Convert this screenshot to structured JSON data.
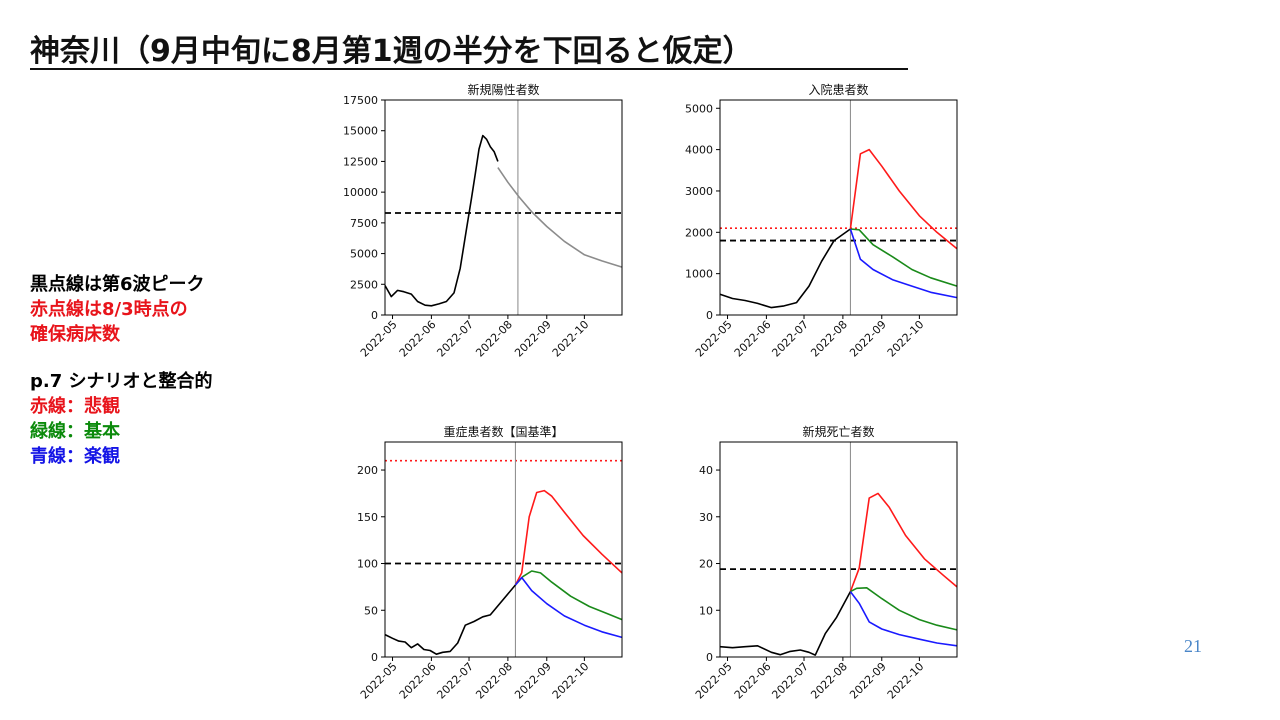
{
  "title": "神奈川（9月中旬に8月第1週の半分を下回ると仮定）",
  "notes": {
    "black_dotted": "黒点線は第6波ピーク",
    "red_dotted_1": "赤点線は8/3時点の",
    "red_dotted_2": "確保病床数",
    "scenario": "p.7 シナリオと整合的",
    "red_line": "赤線：悲観",
    "green_line": "緑線：基本",
    "blue_line": "青線：楽観"
  },
  "colors": {
    "pessimistic": "#ff1a1a",
    "baseline": "#1a8a1a",
    "optimistic": "#1a1aff",
    "actual": "#000000",
    "projection_single": "#8c8c8c",
    "note_black": "#000000",
    "note_red": "#e8141b",
    "note_green": "#0b8a0b",
    "note_blue": "#1414e6",
    "page_number": "#4a86c8"
  },
  "page_number": "21",
  "chart_data": [
    {
      "type": "line",
      "title": "新規陽性者数",
      "x_range": [
        "2022-04-25",
        "2022-10-31"
      ],
      "x_ticks": [
        "2022-05",
        "2022-06",
        "2022-07",
        "2022-08",
        "2022-09",
        "2022-10"
      ],
      "ylim": [
        0,
        17500
      ],
      "y_ticks": [
        0,
        2500,
        5000,
        7500,
        10000,
        12500,
        15000,
        17500
      ],
      "vline_date": "2022-08-09",
      "hlines": [
        {
          "value": 8300,
          "style": "black-dashed",
          "meaning": "第6波ピーク"
        }
      ],
      "series": [
        {
          "role": "actual",
          "points": [
            [
              "2022-04-25",
              2400
            ],
            [
              "2022-04-30",
              1500
            ],
            [
              "2022-05-05",
              2000
            ],
            [
              "2022-05-10",
              1900
            ],
            [
              "2022-05-16",
              1700
            ],
            [
              "2022-05-21",
              1100
            ],
            [
              "2022-05-27",
              800
            ],
            [
              "2022-06-01",
              750
            ],
            [
              "2022-06-07",
              900
            ],
            [
              "2022-06-13",
              1100
            ],
            [
              "2022-06-19",
              1800
            ],
            [
              "2022-06-24",
              3800
            ],
            [
              "2022-06-29",
              7000
            ],
            [
              "2022-07-03",
              9500
            ],
            [
              "2022-07-06",
              11500
            ],
            [
              "2022-07-09",
              13500
            ],
            [
              "2022-07-12",
              14600
            ],
            [
              "2022-07-15",
              14300
            ],
            [
              "2022-07-18",
              13700
            ],
            [
              "2022-07-21",
              13300
            ],
            [
              "2022-07-24",
              12500
            ]
          ]
        },
        {
          "role": "projection",
          "points": [
            [
              "2022-07-24",
              12000
            ],
            [
              "2022-08-01",
              10800
            ],
            [
              "2022-08-10",
              9600
            ],
            [
              "2022-08-20",
              8400
            ],
            [
              "2022-09-01",
              7200
            ],
            [
              "2022-09-15",
              6000
            ],
            [
              "2022-10-01",
              4900
            ],
            [
              "2022-10-15",
              4400
            ],
            [
              "2022-10-31",
              3900
            ]
          ]
        }
      ]
    },
    {
      "type": "line",
      "title": "入院患者数",
      "x_range": [
        "2022-04-25",
        "2022-10-31"
      ],
      "x_ticks": [
        "2022-05",
        "2022-06",
        "2022-07",
        "2022-08",
        "2022-09",
        "2022-10"
      ],
      "ylim": [
        0,
        5200
      ],
      "y_ticks": [
        0,
        1000,
        2000,
        3000,
        4000,
        5000
      ],
      "vline_date": "2022-08-07",
      "hlines": [
        {
          "value": 1800,
          "style": "black-dashed",
          "meaning": "第6波ピーク"
        },
        {
          "value": 2100,
          "style": "red-dotted",
          "meaning": "確保病床数"
        }
      ],
      "series": [
        {
          "role": "actual",
          "points": [
            [
              "2022-04-25",
              500
            ],
            [
              "2022-05-05",
              400
            ],
            [
              "2022-05-15",
              350
            ],
            [
              "2022-05-25",
              280
            ],
            [
              "2022-06-05",
              180
            ],
            [
              "2022-06-15",
              220
            ],
            [
              "2022-06-25",
              300
            ],
            [
              "2022-07-05",
              700
            ],
            [
              "2022-07-15",
              1300
            ],
            [
              "2022-07-25",
              1800
            ],
            [
              "2022-08-07",
              2080
            ]
          ]
        },
        {
          "role": "pessimistic",
          "points": [
            [
              "2022-08-07",
              2080
            ],
            [
              "2022-08-15",
              3900
            ],
            [
              "2022-08-22",
              4000
            ],
            [
              "2022-09-01",
              3600
            ],
            [
              "2022-09-15",
              3000
            ],
            [
              "2022-10-01",
              2400
            ],
            [
              "2022-10-15",
              2000
            ],
            [
              "2022-10-31",
              1600
            ]
          ]
        },
        {
          "role": "baseline",
          "points": [
            [
              "2022-08-07",
              2080
            ],
            [
              "2022-08-14",
              2060
            ],
            [
              "2022-08-25",
              1700
            ],
            [
              "2022-09-10",
              1400
            ],
            [
              "2022-09-25",
              1100
            ],
            [
              "2022-10-10",
              900
            ],
            [
              "2022-10-31",
              700
            ]
          ]
        },
        {
          "role": "optimistic",
          "points": [
            [
              "2022-08-07",
              2080
            ],
            [
              "2022-08-15",
              1350
            ],
            [
              "2022-08-25",
              1100
            ],
            [
              "2022-09-10",
              850
            ],
            [
              "2022-09-25",
              700
            ],
            [
              "2022-10-10",
              550
            ],
            [
              "2022-10-31",
              420
            ]
          ]
        }
      ]
    },
    {
      "type": "line",
      "title": "重症患者数【国基準】",
      "x_range": [
        "2022-04-25",
        "2022-10-31"
      ],
      "x_ticks": [
        "2022-05",
        "2022-06",
        "2022-07",
        "2022-08",
        "2022-09",
        "2022-10"
      ],
      "ylim": [
        0,
        230
      ],
      "y_ticks": [
        0,
        50,
        100,
        150,
        200
      ],
      "vline_date": "2022-08-07",
      "hlines": [
        {
          "value": 100,
          "style": "black-dashed",
          "meaning": "第6波ピーク"
        },
        {
          "value": 210,
          "style": "red-dotted",
          "meaning": "確保病床数"
        }
      ],
      "series": [
        {
          "role": "actual",
          "points": [
            [
              "2022-04-25",
              24
            ],
            [
              "2022-05-01",
              20
            ],
            [
              "2022-05-06",
              17
            ],
            [
              "2022-05-11",
              16
            ],
            [
              "2022-05-16",
              10
            ],
            [
              "2022-05-21",
              14
            ],
            [
              "2022-05-26",
              8
            ],
            [
              "2022-05-31",
              7
            ],
            [
              "2022-06-05",
              3
            ],
            [
              "2022-06-10",
              5
            ],
            [
              "2022-06-16",
              6
            ],
            [
              "2022-06-22",
              15
            ],
            [
              "2022-06-28",
              34
            ],
            [
              "2022-07-05",
              38
            ],
            [
              "2022-07-12",
              43
            ],
            [
              "2022-07-18",
              45
            ],
            [
              "2022-08-07",
              77
            ]
          ]
        },
        {
          "role": "pessimistic",
          "points": [
            [
              "2022-08-07",
              77
            ],
            [
              "2022-08-12",
              90
            ],
            [
              "2022-08-18",
              150
            ],
            [
              "2022-08-24",
              176
            ],
            [
              "2022-08-30",
              178
            ],
            [
              "2022-09-05",
              172
            ],
            [
              "2022-09-15",
              155
            ],
            [
              "2022-09-30",
              130
            ],
            [
              "2022-10-15",
              110
            ],
            [
              "2022-10-31",
              90
            ]
          ]
        },
        {
          "role": "baseline",
          "points": [
            [
              "2022-08-07",
              77
            ],
            [
              "2022-08-13",
              86
            ],
            [
              "2022-08-20",
              92
            ],
            [
              "2022-08-27",
              90
            ],
            [
              "2022-09-05",
              80
            ],
            [
              "2022-09-20",
              65
            ],
            [
              "2022-10-05",
              54
            ],
            [
              "2022-10-20",
              46
            ],
            [
              "2022-10-31",
              40
            ]
          ]
        },
        {
          "role": "optimistic",
          "points": [
            [
              "2022-08-07",
              77
            ],
            [
              "2022-08-12",
              85
            ],
            [
              "2022-08-20",
              71
            ],
            [
              "2022-09-01",
              57
            ],
            [
              "2022-09-15",
              44
            ],
            [
              "2022-10-01",
              34
            ],
            [
              "2022-10-15",
              27
            ],
            [
              "2022-10-31",
              21
            ]
          ]
        }
      ]
    },
    {
      "type": "line",
      "title": "新規死亡者数",
      "x_range": [
        "2022-04-25",
        "2022-10-31"
      ],
      "x_ticks": [
        "2022-05",
        "2022-06",
        "2022-07",
        "2022-08",
        "2022-09",
        "2022-10"
      ],
      "ylim": [
        0,
        46
      ],
      "y_ticks": [
        0,
        10,
        20,
        30,
        40
      ],
      "vline_date": "2022-08-07",
      "hlines": [
        {
          "value": 18.8,
          "style": "black-dashed",
          "meaning": "第6波ピーク"
        }
      ],
      "series": [
        {
          "role": "actual",
          "points": [
            [
              "2022-04-25",
              2.2
            ],
            [
              "2022-05-05",
              2
            ],
            [
              "2022-05-15",
              2.2
            ],
            [
              "2022-05-25",
              2.4
            ],
            [
              "2022-06-05",
              1
            ],
            [
              "2022-06-12",
              0.5
            ],
            [
              "2022-06-20",
              1.2
            ],
            [
              "2022-06-28",
              1.5
            ],
            [
              "2022-07-05",
              1
            ],
            [
              "2022-07-10",
              0.4
            ],
            [
              "2022-07-18",
              5
            ],
            [
              "2022-07-27",
              8.5
            ],
            [
              "2022-08-07",
              14
            ]
          ]
        },
        {
          "role": "pessimistic",
          "points": [
            [
              "2022-08-07",
              14
            ],
            [
              "2022-08-14",
              19
            ],
            [
              "2022-08-22",
              34
            ],
            [
              "2022-08-29",
              35
            ],
            [
              "2022-09-07",
              32
            ],
            [
              "2022-09-20",
              26
            ],
            [
              "2022-10-05",
              21
            ],
            [
              "2022-10-20",
              17.5
            ],
            [
              "2022-10-31",
              15
            ]
          ]
        },
        {
          "role": "baseline",
          "points": [
            [
              "2022-08-07",
              14
            ],
            [
              "2022-08-12",
              14.7
            ],
            [
              "2022-08-20",
              14.8
            ],
            [
              "2022-09-01",
              12.5
            ],
            [
              "2022-09-15",
              10
            ],
            [
              "2022-10-01",
              8
            ],
            [
              "2022-10-15",
              6.8
            ],
            [
              "2022-10-31",
              5.8
            ]
          ]
        },
        {
          "role": "optimistic",
          "points": [
            [
              "2022-08-07",
              14
            ],
            [
              "2022-08-14",
              11.5
            ],
            [
              "2022-08-22",
              7.5
            ],
            [
              "2022-09-01",
              6
            ],
            [
              "2022-09-15",
              4.8
            ],
            [
              "2022-10-01",
              3.8
            ],
            [
              "2022-10-15",
              3
            ],
            [
              "2022-10-31",
              2.4
            ]
          ]
        }
      ]
    }
  ]
}
